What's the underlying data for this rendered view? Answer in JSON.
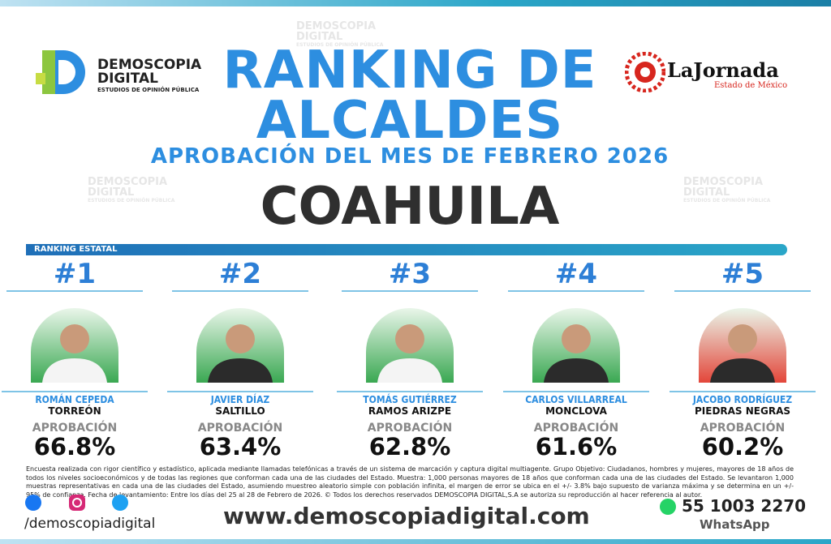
{
  "header": {
    "brand": {
      "line1": "DEMOSCOPIA",
      "line2": "DIGITAL",
      "line3": "ESTUDIOS DE OPINIÓN PÚBLICA"
    },
    "title_line1": "RANKING DE",
    "title_line2": "ALCALDES",
    "subtitle": "APROBACIÓN DEL MES DE FEBRERO 2026",
    "state": "COAHUILA",
    "partner": {
      "name": "LaJornada",
      "region": "Estado de México"
    }
  },
  "section_label": "RANKING ESTATAL",
  "ranking": [
    {
      "rank": "#1",
      "name": "ROMÁN CEPEDA",
      "city": "TORREÓN",
      "label": "APROBACIÓN",
      "approval": "66.8%"
    },
    {
      "rank": "#2",
      "name": "JAVIER DÍAZ",
      "city": "SALTILLO",
      "label": "APROBACIÓN",
      "approval": "63.4%"
    },
    {
      "rank": "#3",
      "name": "TOMÁS GUTIÉRREZ",
      "city": "RAMOS ARIZPE",
      "label": "APROBACIÓN",
      "approval": "62.8%"
    },
    {
      "rank": "#4",
      "name": "CARLOS VILLARREAL",
      "city": "MONCLOVA",
      "label": "APROBACIÓN",
      "approval": "61.6%"
    },
    {
      "rank": "#5",
      "name": "JACOBO RODRÍGUEZ",
      "city": "PIEDRAS NEGRAS",
      "label": "APROBACIÓN",
      "approval": "60.2%"
    }
  ],
  "footer": {
    "disclaimer": "Encuesta realizada con rigor científico y estadístico, aplicada mediante llamadas telefónicas a través de un sistema de marcación y captura digital multiagente. Grupo Objetivo: Ciudadanos, hombres y mujeres, mayores de 18 años de todos los niveles socioeconómicos y de todas las regiones que conforman cada una de las ciudades del Estado. Muestra: 1,000 personas mayores de 18 años que conforman cada una de las ciudades del Estado. Se levantaron 1,000 muestras representativas en cada una de las ciudades del Estado, asumiendo muestreo aleatorio simple con población infinita, el margen de error se ubica en el +/- 3.8% bajo supuesto de varianza máxima y se determina en un +/- 95% de confianza. Fecha de levantamiento: Entre los días del 25 al 28 de Febrero de 2026. © Todos los derechos reservados DEMOSCOPIA DIGITAL,S.A se autoriza su reproducción al hacer referencia al autor.",
    "social": "/demoscopiadigital",
    "website": "www.demoscopiadigital.com",
    "phone": "55 1003 2270",
    "phone_label": "WhatsApp"
  }
}
